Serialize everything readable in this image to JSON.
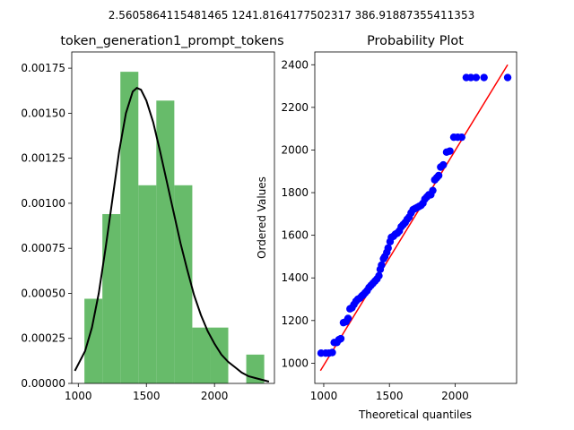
{
  "suptitle": "2.5605864115481465 1241.8164177502317 386.91887355411353",
  "chart_data": [
    {
      "type": "bar",
      "title": "token_generation1_prompt_tokens",
      "xlabel": "",
      "ylabel": "",
      "xlim": [
        952,
        2440
      ],
      "ylim": [
        0,
        0.00184
      ],
      "xticks": [
        1000,
        1500,
        2000
      ],
      "yticks": [
        "0.00000",
        "0.00025",
        "0.00050",
        "0.00075",
        "0.00100",
        "0.00125",
        "0.00150",
        "0.00175"
      ],
      "bin_edges": [
        1045,
        1177,
        1309,
        1441,
        1573,
        1705,
        1837,
        1969,
        2101,
        2233,
        2365
      ],
      "values": [
        0.00047,
        0.00094,
        0.00173,
        0.0011,
        0.00157,
        0.0011,
        0.00031,
        0.00031,
        0.0,
        0.00016
      ],
      "bar_color": "#4caf50",
      "curve": {
        "color": "#000000",
        "x": [
          975,
          1050,
          1100,
          1150,
          1200,
          1250,
          1300,
          1350,
          1400,
          1430,
          1460,
          1500,
          1550,
          1600,
          1650,
          1700,
          1750,
          1800,
          1850,
          1900,
          1950,
          2000,
          2050,
          2100,
          2150,
          2200,
          2250,
          2300,
          2350,
          2400
        ],
        "y": [
          7e-05,
          0.00018,
          0.00031,
          0.0005,
          0.00075,
          0.00102,
          0.00129,
          0.0015,
          0.00162,
          0.00164,
          0.00163,
          0.00157,
          0.00145,
          0.00129,
          0.00112,
          0.00095,
          0.00078,
          0.00063,
          0.00049,
          0.00038,
          0.00029,
          0.00022,
          0.00016,
          0.00012,
          9e-05,
          6e-05,
          4e-05,
          3e-05,
          2e-05,
          1e-05
        ]
      }
    },
    {
      "type": "scatter",
      "title": "Probability Plot",
      "xlabel": "Theoretical quantiles",
      "ylabel": "Ordered Values",
      "xlim": [
        932,
        2468
      ],
      "ylim": [
        905,
        2460
      ],
      "xticks": [
        1000,
        1500,
        2000
      ],
      "yticks": [
        1000,
        1200,
        1400,
        1600,
        1800,
        2000,
        2200,
        2400
      ],
      "marker_color": "#0000ff",
      "fit_color": "#ff0000",
      "fit_line": {
        "x": [
          975,
          2400
        ],
        "y": [
          965,
          2400
        ]
      },
      "points": [
        [
          980,
          1047
        ],
        [
          1015,
          1047
        ],
        [
          1040,
          1047
        ],
        [
          1065,
          1050
        ],
        [
          1080,
          1097
        ],
        [
          1100,
          1097
        ],
        [
          1115,
          1110
        ],
        [
          1130,
          1115
        ],
        [
          1150,
          1190
        ],
        [
          1170,
          1195
        ],
        [
          1185,
          1210
        ],
        [
          1200,
          1255
        ],
        [
          1215,
          1260
        ],
        [
          1230,
          1275
        ],
        [
          1245,
          1290
        ],
        [
          1260,
          1300
        ],
        [
          1275,
          1305
        ],
        [
          1290,
          1315
        ],
        [
          1300,
          1320
        ],
        [
          1315,
          1330
        ],
        [
          1330,
          1340
        ],
        [
          1345,
          1355
        ],
        [
          1360,
          1365
        ],
        [
          1375,
          1375
        ],
        [
          1390,
          1385
        ],
        [
          1405,
          1395
        ],
        [
          1420,
          1410
        ],
        [
          1430,
          1440
        ],
        [
          1440,
          1460
        ],
        [
          1455,
          1490
        ],
        [
          1465,
          1500
        ],
        [
          1480,
          1520
        ],
        [
          1490,
          1540
        ],
        [
          1505,
          1570
        ],
        [
          1515,
          1590
        ],
        [
          1530,
          1595
        ],
        [
          1545,
          1605
        ],
        [
          1560,
          1610
        ],
        [
          1575,
          1620
        ],
        [
          1590,
          1640
        ],
        [
          1605,
          1650
        ],
        [
          1620,
          1660
        ],
        [
          1635,
          1675
        ],
        [
          1650,
          1685
        ],
        [
          1665,
          1705
        ],
        [
          1680,
          1720
        ],
        [
          1695,
          1725
        ],
        [
          1710,
          1730
        ],
        [
          1725,
          1735
        ],
        [
          1740,
          1740
        ],
        [
          1755,
          1750
        ],
        [
          1770,
          1770
        ],
        [
          1785,
          1780
        ],
        [
          1800,
          1790
        ],
        [
          1815,
          1790
        ],
        [
          1830,
          1810
        ],
        [
          1845,
          1860
        ],
        [
          1860,
          1870
        ],
        [
          1875,
          1880
        ],
        [
          1890,
          1920
        ],
        [
          1910,
          1930
        ],
        [
          1935,
          1990
        ],
        [
          1960,
          1995
        ],
        [
          1990,
          2060
        ],
        [
          2020,
          2060
        ],
        [
          2050,
          2060
        ],
        [
          2085,
          2340
        ],
        [
          2120,
          2340
        ],
        [
          2160,
          2340
        ],
        [
          2220,
          2340
        ],
        [
          2400,
          2340
        ]
      ]
    }
  ]
}
